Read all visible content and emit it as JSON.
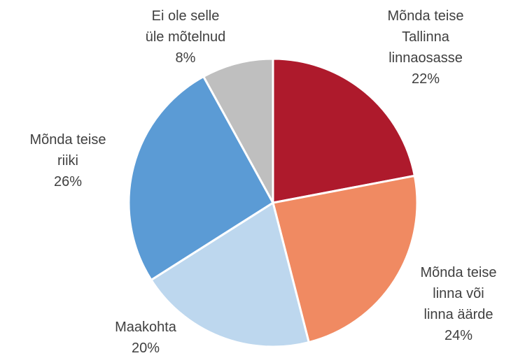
{
  "chart_data": {
    "type": "pie",
    "categories": [
      "Mõnda teise\nTallinna\nlinnaosasse",
      "Mõnda teise\nlinna või\nlinna äärde",
      "Maakohta",
      "Mõnda teise\nriiki",
      "Ei ole selle\nüle mõtelnud"
    ],
    "values": [
      22,
      24,
      20,
      26,
      8
    ],
    "value_labels": [
      "22%",
      "24%",
      "20%",
      "26%",
      "8%"
    ],
    "colors": [
      "#ae1a2c",
      "#f08a62",
      "#bdd7ee",
      "#5b9bd5",
      "#bfbfbf"
    ]
  }
}
